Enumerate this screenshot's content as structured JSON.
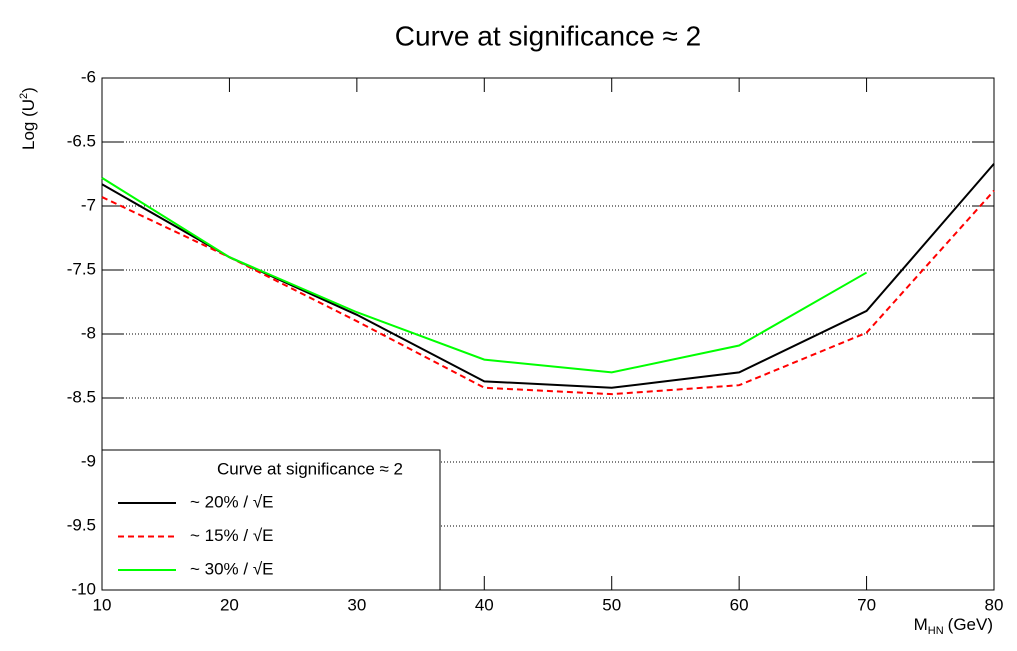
{
  "chart_data": {
    "type": "line",
    "title": "Curve at significance ≈ 2",
    "xlabel": [
      "M",
      "HN",
      "(GeV)"
    ],
    "ylabel": [
      "Log (U",
      "2",
      ")"
    ],
    "legend_title": "Curve at significance ≈ 2",
    "legend": "bottom-left",
    "grid": "y",
    "x": [
      10,
      20,
      30,
      40,
      50,
      60,
      70,
      80
    ],
    "xlim": [
      10,
      80
    ],
    "xticks": [
      10,
      20,
      30,
      40,
      50,
      60,
      70,
      80
    ],
    "ylim": [
      -10,
      -6
    ],
    "yticks": [
      -10,
      -9.5,
      -9,
      -8.5,
      -8,
      -7.5,
      -7,
      -6.5,
      -6
    ],
    "series": [
      {
        "name": "~ 20% / √E",
        "color": "#000000",
        "dash": "solid",
        "values": [
          -6.83,
          -7.4,
          -7.85,
          -8.37,
          -8.42,
          -8.3,
          -7.82,
          -6.67
        ]
      },
      {
        "name": "~ 15% / √E",
        "color": "#ff0000",
        "dash": "dashed",
        "values": [
          -6.93,
          -7.4,
          -7.9,
          -8.42,
          -8.47,
          -8.4,
          -7.99,
          -6.88
        ]
      },
      {
        "name": "~ 30% / √E",
        "color": "#00ff00",
        "dash": "solid",
        "values": [
          -6.78,
          -7.4,
          -7.83,
          -8.2,
          -8.3,
          -8.09,
          -7.52,
          null
        ]
      }
    ]
  }
}
